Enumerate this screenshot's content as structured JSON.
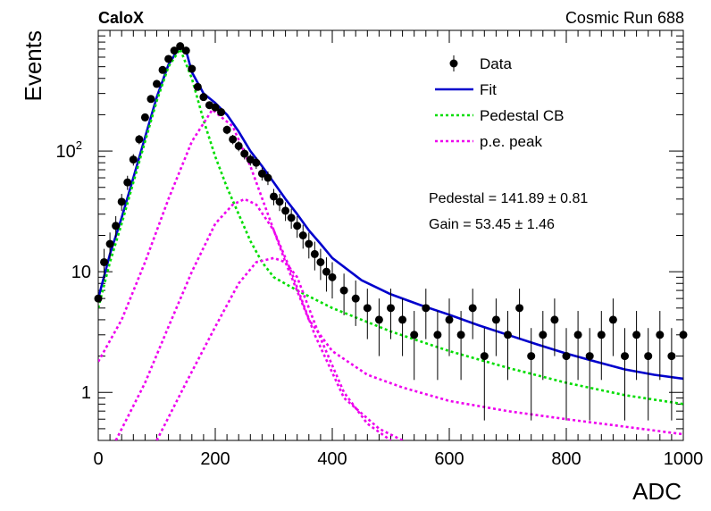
{
  "header": {
    "left_title": "CaloX",
    "right_title": "Cosmic Run 688"
  },
  "colors": {
    "data": "#000000",
    "fit": "#0000cc",
    "pedestal": "#00dd00",
    "pe_peak": "#ee00ee"
  },
  "chart_data": {
    "type": "scatter",
    "xlabel": "ADC",
    "ylabel": "Events",
    "xlim": [
      0,
      1000
    ],
    "ylim": [
      0.4,
      1000
    ],
    "yscale": "log",
    "x_ticks": [
      0,
      200,
      400,
      600,
      800,
      1000
    ],
    "y_ticks": [
      {
        "value": 1,
        "label": "1"
      },
      {
        "value": 10,
        "label": "10"
      },
      {
        "value": 100,
        "label": "10",
        "sup": "2"
      }
    ],
    "legend": {
      "placement": "top-right",
      "entries": [
        {
          "label": "Data",
          "style": "marker"
        },
        {
          "label": "Fit",
          "style": "solid"
        },
        {
          "label": "Pedestal CB",
          "style": "dotted-green"
        },
        {
          "label": "p.e. peak",
          "style": "dotted-magenta"
        }
      ]
    },
    "annotations": [
      "Pedestal = 141.89 ± 0.81",
      "Gain = 53.45 ± 1.46"
    ],
    "series": [
      {
        "name": "Data",
        "x": [
          0,
          10,
          20,
          30,
          40,
          50,
          60,
          70,
          80,
          90,
          100,
          110,
          120,
          130,
          140,
          150,
          160,
          170,
          180,
          190,
          200,
          210,
          220,
          230,
          240,
          250,
          260,
          270,
          280,
          290,
          300,
          310,
          320,
          330,
          340,
          350,
          360,
          370,
          380,
          390,
          400,
          420,
          440,
          460,
          480,
          500,
          520,
          540,
          560,
          580,
          600,
          620,
          640,
          660,
          680,
          700,
          720,
          740,
          760,
          780,
          800,
          820,
          840,
          860,
          880,
          900,
          920,
          940,
          960,
          980,
          1000
        ],
        "y": [
          6,
          12,
          17,
          24,
          38,
          55,
          85,
          125,
          190,
          270,
          360,
          470,
          580,
          680,
          740,
          680,
          480,
          340,
          280,
          240,
          230,
          210,
          150,
          125,
          110,
          95,
          85,
          80,
          65,
          60,
          42,
          38,
          32,
          28,
          24,
          20,
          17,
          14,
          12,
          10,
          9,
          7,
          6,
          5,
          4,
          5,
          4,
          3,
          5,
          3,
          4,
          3,
          5,
          2,
          4,
          3,
          5,
          2,
          3,
          4,
          2,
          3,
          2,
          3,
          4,
          2,
          3,
          2,
          3,
          2,
          3
        ]
      },
      {
        "name": "Fit",
        "x": [
          0,
          20,
          40,
          60,
          80,
          100,
          120,
          140,
          150,
          160,
          180,
          200,
          220,
          240,
          260,
          280,
          300,
          320,
          340,
          360,
          380,
          400,
          450,
          500,
          550,
          600,
          650,
          700,
          750,
          800,
          850,
          900,
          950,
          1000
        ],
        "y": [
          6,
          14,
          28,
          60,
          130,
          280,
          520,
          740,
          680,
          450,
          300,
          250,
          200,
          145,
          100,
          75,
          55,
          40,
          30,
          22,
          17,
          13,
          8.5,
          6.5,
          5.3,
          4.4,
          3.6,
          3.0,
          2.5,
          2.1,
          1.8,
          1.55,
          1.4,
          1.3
        ]
      },
      {
        "name": "Pedestal CB",
        "x": [
          0,
          20,
          40,
          60,
          80,
          100,
          120,
          140,
          160,
          180,
          200,
          220,
          240,
          260,
          280,
          300,
          340,
          400,
          450,
          500,
          600,
          700,
          800,
          900,
          1000
        ],
        "y": [
          5,
          12,
          25,
          55,
          120,
          260,
          500,
          700,
          400,
          180,
          90,
          50,
          30,
          18,
          12,
          9,
          7,
          5,
          4,
          3.2,
          2.2,
          1.6,
          1.2,
          0.95,
          0.8
        ]
      },
      {
        "name": "p.e. peak",
        "x": [
          0,
          40,
          80,
          120,
          160,
          195,
          230,
          260,
          290,
          320,
          360,
          400,
          460,
          520,
          600,
          700,
          800,
          900,
          1000
        ],
        "y": [
          1.8,
          4,
          12,
          40,
          120,
          220,
          160,
          75,
          30,
          12,
          4,
          2.2,
          1.4,
          1.1,
          0.85,
          0.7,
          0.6,
          0.52,
          0.45
        ]
      },
      {
        "name": "p.e. peak",
        "x": [
          30,
          80,
          120,
          160,
          200,
          230,
          250,
          270,
          300,
          330,
          370,
          420,
          480,
          520
        ],
        "y": [
          0.4,
          1.2,
          3.5,
          10,
          25,
          36,
          40,
          36,
          22,
          10,
          3,
          0.9,
          0.5,
          0.4
        ]
      },
      {
        "name": "p.e. peak",
        "x": [
          100,
          150,
          200,
          240,
          270,
          300,
          320,
          340,
          360,
          380,
          420,
          460,
          500
        ],
        "y": [
          0.4,
          1.2,
          3.5,
          8,
          12,
          13,
          12,
          9,
          5,
          2.8,
          1.0,
          0.55,
          0.4
        ]
      }
    ]
  }
}
